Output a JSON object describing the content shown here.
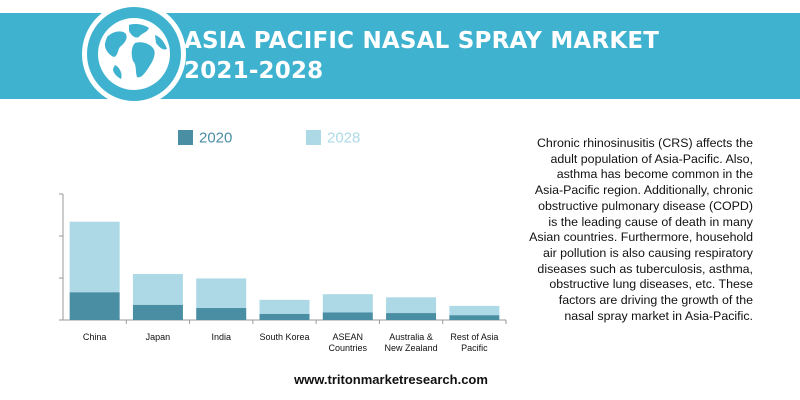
{
  "header": {
    "title_line1": "ASIA PACIFIC NASAL SPRAY MARKET",
    "title_line2": "2021-2028"
  },
  "colors": {
    "banner": "#3fb2cf",
    "series_2020": "#4a8ea4",
    "series_2028": "#add9e6",
    "axis": "#9a9a9a",
    "text": "#111111"
  },
  "icons": {
    "globe": "globe-icon"
  },
  "chart_data": {
    "type": "bar",
    "stacked": true,
    "categories": [
      "China",
      "Japan",
      "India",
      "South Korea",
      "ASEAN Countries",
      "Australia & New Zealand",
      "Rest of Asia Pacific"
    ],
    "category_lines": [
      [
        "China"
      ],
      [
        "Japan"
      ],
      [
        "India"
      ],
      [
        "South Korea"
      ],
      [
        "ASEAN",
        "Countries"
      ],
      [
        "Australia &",
        "New Zealand"
      ],
      [
        "Rest of Asia",
        "Pacific"
      ]
    ],
    "series": [
      {
        "name": "2020",
        "values": [
          2.2,
          1.2,
          0.95,
          0.48,
          0.6,
          0.55,
          0.38
        ]
      },
      {
        "name": "2028",
        "values": [
          7.8,
          3.65,
          3.3,
          1.6,
          2.05,
          1.8,
          1.12
        ]
      }
    ],
    "ylim": [
      0,
      10
    ],
    "y_ticks": [
      0,
      3.33,
      6.67,
      10
    ],
    "y_tick_labels_shown": false,
    "grid": false,
    "legend": "top",
    "title": "",
    "xlabel": "",
    "ylabel": ""
  },
  "description": "Chronic rhinosinusitis (CRS) affects the adult population of Asia-Pacific. Also, asthma has become common in the Asia-Pacific region. Additionally, chronic obstructive pulmonary disease (COPD) is the leading cause of death in many Asian countries. Furthermore, household air pollution is also causing respiratory diseases such as tuberculosis, asthma, obstructive lung diseases, etc. These factors are driving the growth of the nasal spray market in Asia-Pacific.",
  "footer": {
    "url": "www.tritonmarketresearch.com"
  }
}
